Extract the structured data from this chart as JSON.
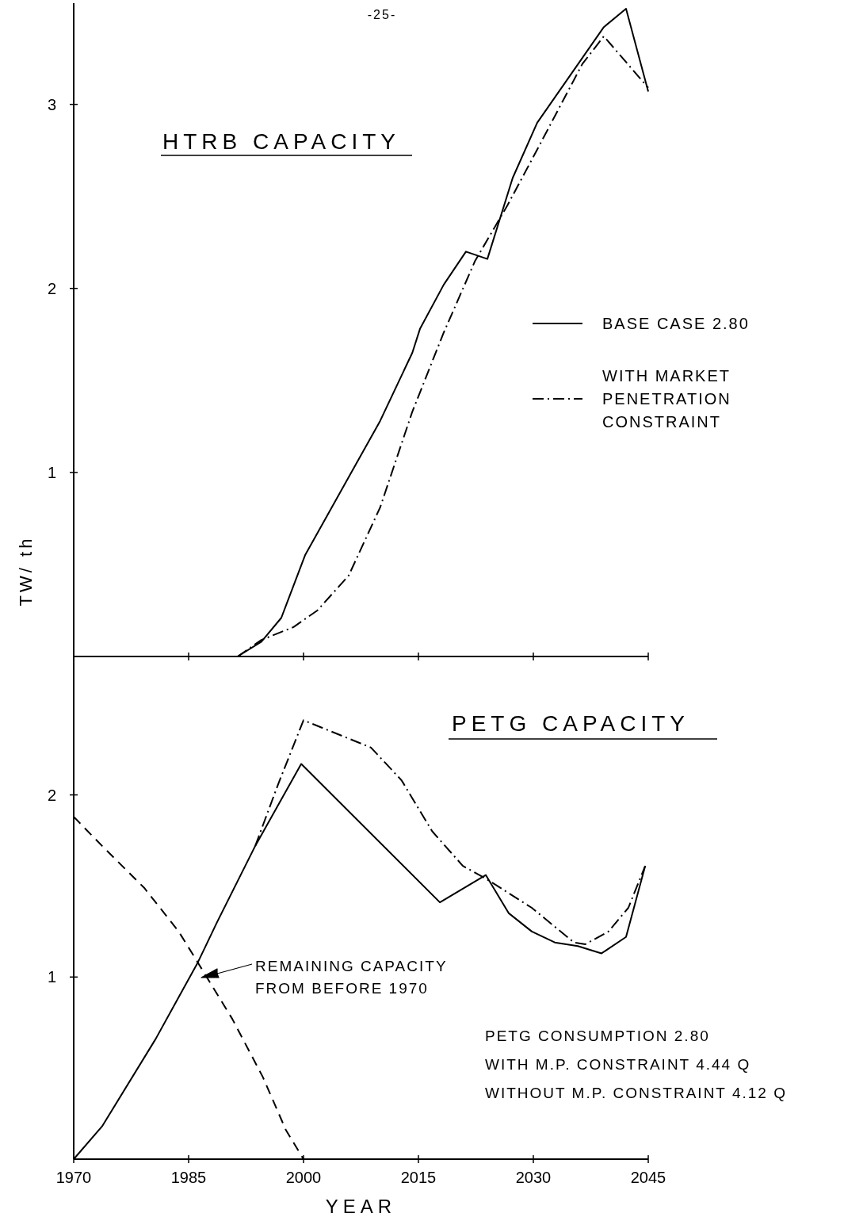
{
  "chart_data": [
    {
      "type": "line",
      "title": "HTRB CAPACITY",
      "ylabel": "TW/ th",
      "xlim": [
        1970,
        2045
      ],
      "xticks": [
        1970,
        1985,
        2000,
        2015,
        2030,
        2045
      ],
      "ylim": [
        0,
        3.55
      ],
      "yticks": [
        1,
        2,
        3
      ],
      "tick_labels": "y",
      "legend": "right",
      "grid": false,
      "annotations": [
        "-25-"
      ],
      "series": [
        {
          "name": "BASE CASE 2.80",
          "color": "#000000",
          "line_style": "solid",
          "x": [
            1970,
            1991.4,
            1994.5,
            1997.1,
            2000.2,
            2004.9,
            2010,
            2014.2,
            2015.2,
            2018.3,
            2021.2,
            2024,
            2027.3,
            2030.5,
            2039.2,
            2042.1,
            2045
          ],
          "values": [
            0,
            0,
            0.08,
            0.21,
            0.55,
            0.9,
            1.28,
            1.65,
            1.78,
            2.02,
            2.2,
            2.16,
            2.6,
            2.9,
            3.42,
            3.52,
            3.07
          ]
        },
        {
          "name": "WITH MARKET PENETRATION CONSTRAINT",
          "color": "#000000",
          "line_style": "dashdot",
          "x": [
            1991.4,
            1994.5,
            1998.7,
            2001.8,
            2005.9,
            2010,
            2014.2,
            2018.3,
            2022.4,
            2026.6,
            2030.7,
            2036.4,
            2039.2,
            2045
          ],
          "values": [
            0,
            0.09,
            0.16,
            0.25,
            0.44,
            0.81,
            1.33,
            1.76,
            2.15,
            2.45,
            2.77,
            3.22,
            3.37,
            3.09
          ]
        }
      ]
    },
    {
      "type": "line",
      "title": "PETG CAPACITY",
      "xlabel": "YEAR",
      "xlim": [
        1970,
        2045
      ],
      "xticks": [
        1970,
        1985,
        2000,
        2015,
        2030,
        2045
      ],
      "ylim": [
        0,
        2.76
      ],
      "yticks": [
        1,
        2
      ],
      "grid": false,
      "annotations": [
        "REMAINING CAPACITY FROM BEFORE 1970",
        "PETG CONSUMPTION 2.80",
        "WITH M.P. CONSTRAINT 4.44 Q",
        "WITHOUT M.P. CONSTRAINT 4.12 Q"
      ],
      "series": [
        {
          "color": "#000000",
          "line_style": "solid",
          "x": [
            1970,
            1973.7,
            1980.7,
            1986.2,
            1988.7,
            1993.7,
            1999.7,
            2017.8,
            2023.8,
            2026.8,
            2029.8,
            2032.8,
            2035.8,
            2038.9,
            2042.1,
            2044.6
          ],
          "values": [
            0,
            0.18,
            0.66,
            1.08,
            1.3,
            1.72,
            2.17,
            1.41,
            1.56,
            1.35,
            1.25,
            1.19,
            1.17,
            1.13,
            1.22,
            1.61
          ]
        },
        {
          "color": "#000000",
          "line_style": "dashdot",
          "x": [
            1993.7,
            1996.7,
            2000,
            2008.8,
            2012.8,
            2016.8,
            2020.8,
            2023.8,
            2029.8,
            2035.3,
            2036.8,
            2039.8,
            2042.4,
            2044.6
          ],
          "values": [
            1.72,
            2.06,
            2.41,
            2.26,
            2.08,
            1.8,
            1.61,
            1.54,
            1.38,
            1.19,
            1.18,
            1.25,
            1.38,
            1.61
          ]
        },
        {
          "color": "#000000",
          "line_style": "dashed",
          "x": [
            1970,
            1973.7,
            1979.2,
            1983.7,
            1986.2,
            1990.7,
            1994.7,
            1997.7,
            2000
          ],
          "values": [
            1.88,
            1.72,
            1.49,
            1.25,
            1.08,
            0.77,
            0.45,
            0.16,
            0
          ]
        }
      ]
    }
  ]
}
